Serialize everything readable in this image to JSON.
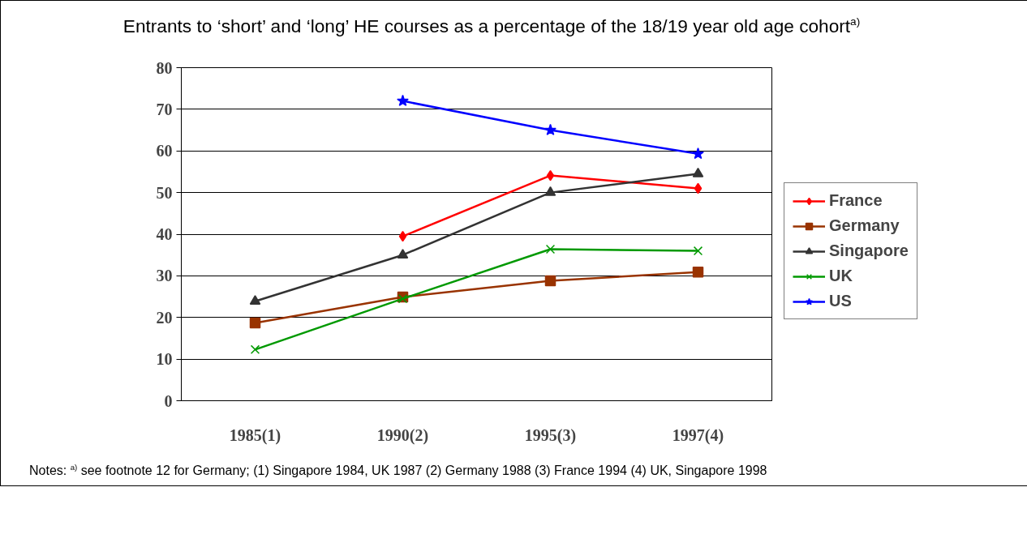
{
  "chart_data": {
    "type": "line",
    "title": "Entrants to ‘short’ and ‘long’ HE courses as a percentage of the 18/19 year old age cohort$^{a)}$",
    "categories": [
      "1985(1)",
      "1990(2)",
      "1995(3)",
      "1997(4)"
    ],
    "series": [
      {
        "name": "France",
        "color": "#ff0000",
        "marker": "diamond",
        "values": [
          null,
          39.5,
          54.1,
          51.0
        ]
      },
      {
        "name": "Germany",
        "color": "#993300",
        "marker": "square",
        "values": [
          18.7,
          24.9,
          28.8,
          30.9
        ]
      },
      {
        "name": "Singapore",
        "color": "#333333",
        "marker": "triangle",
        "values": [
          23.9,
          35.0,
          50.0,
          54.5
        ]
      },
      {
        "name": "UK",
        "color": "#009900",
        "marker": "cross",
        "values": [
          12.3,
          24.5,
          36.4,
          36.0
        ]
      },
      {
        "name": "US",
        "color": "#0000ff",
        "marker": "star",
        "values": [
          null,
          72.0,
          65.0,
          59.3
        ]
      }
    ],
    "ylim": [
      0,
      80
    ],
    "yticks": [
      0,
      10,
      20,
      30,
      40,
      50,
      60,
      70,
      80
    ],
    "grid": "y",
    "legend": "right",
    "line_style": "solid",
    "annotations": [
      "Notes: $^{a)}$ see footnote 12 for Germany; (1) Singapore 1984, UK 1987 (2) Germany 1988 (3) France 1994 (4) UK, Singapore 1998"
    ]
  }
}
